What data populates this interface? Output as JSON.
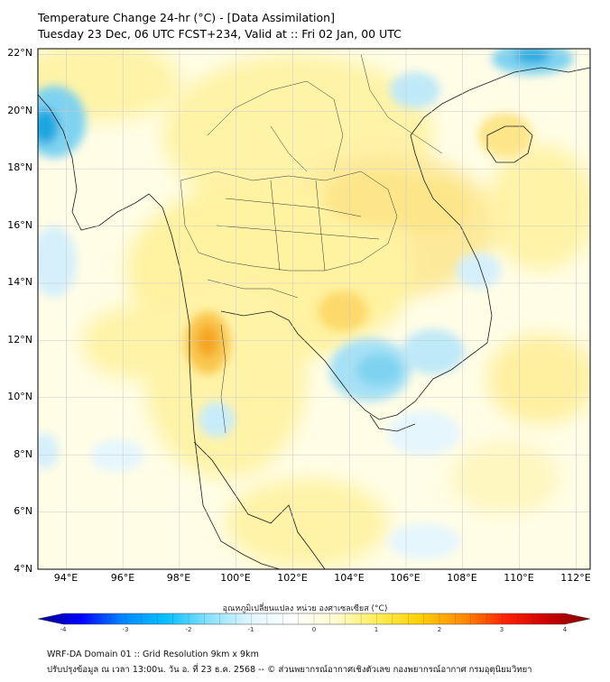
{
  "header": {
    "title_line1": "Temperature Change 24-hr (°C) - [Data Assimilation]",
    "title_line2": "Tuesday 23 Dec, 06 UTC FCST+234, Valid at :: Fri 02 Jan, 00 UTC"
  },
  "map": {
    "lat_labels": [
      "22°N",
      "20°N",
      "18°N",
      "16°N",
      "14°N",
      "12°N",
      "10°N",
      "8°N",
      "6°N",
      "4°N"
    ],
    "lon_labels": [
      "94°E",
      "96°E",
      "98°E",
      "100°E",
      "102°E",
      "104°E",
      "106°E",
      "108°E",
      "110°E",
      "112°E"
    ],
    "lat_range": [
      4,
      22.2
    ],
    "lon_range": [
      93,
      112.5
    ],
    "field_colors": {
      "warm_strong": "#f5a623",
      "warm": "#fde047",
      "warm_light": "#fff3a8",
      "neutral": "#fffde6",
      "cool_light": "#d6f0fb",
      "cool": "#7fd3f0",
      "cool_strong": "#1aa7e0"
    }
  },
  "colorbar": {
    "title": "อุณหภูมิเปลี่ยนแปลง หน่วย องศาเซลเซียส (°C)",
    "ticks": [
      "-4",
      "-3",
      "-2",
      "-1",
      "0",
      "1",
      "2",
      "3",
      "4"
    ],
    "range": [
      -4,
      4
    ],
    "stops": [
      "#00008b",
      "#0000ff",
      "#0088ff",
      "#00bfff",
      "#87e0ff",
      "#e0f7ff",
      "#ffffff",
      "#fffbd0",
      "#ffee55",
      "#ffd000",
      "#ff8c00",
      "#ff2200",
      "#cc0000",
      "#800000"
    ]
  },
  "footer": {
    "line1": "WRF-DA Domain 01 :: Grid Resolution 9km x 9km",
    "line2": "ปรับปรุงข้อมูล ณ เวลา 13:00น. วัน อ. ที่ 23 ธ.ค. 2568 -- © ส่วนพยากรณ์อากาศเชิงตัวเลข กองพยากรณ์อากาศ กรมอุตุนิยมวิทยา"
  }
}
